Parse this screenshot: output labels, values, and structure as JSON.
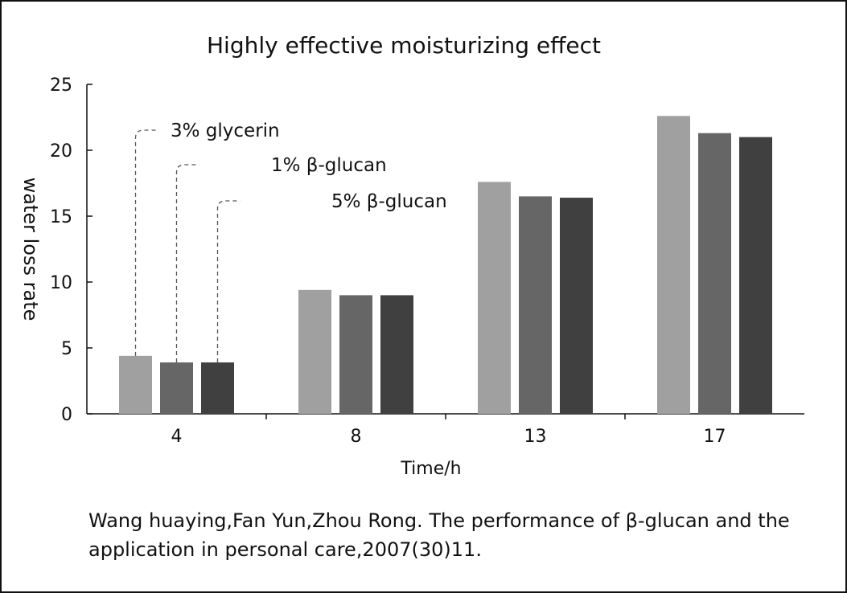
{
  "chart_data": {
    "type": "bar",
    "title": "Highly effective moisturizing effect",
    "xlabel": "Time/h",
    "ylabel": "water loss rate",
    "categories": [
      "4",
      "8",
      "13",
      "17"
    ],
    "series": [
      {
        "name": "3% glycerin",
        "values": [
          4.4,
          9.4,
          17.6,
          22.6
        ],
        "color": "#a0a0a0"
      },
      {
        "name": "1% β-glucan",
        "values": [
          3.9,
          9.0,
          16.5,
          21.3
        ],
        "color": "#666666"
      },
      {
        "name": "5% β-glucan",
        "values": [
          3.9,
          9.0,
          16.4,
          21.0
        ],
        "color": "#404040"
      }
    ],
    "ylim": [
      0,
      25
    ],
    "yticks": [
      0,
      5,
      10,
      15,
      20,
      25
    ],
    "grid": false,
    "legend": "callout labels pointing to first bar group"
  },
  "caption": {
    "line1": "Wang huaying,Fan Yun,Zhou Rong. The performance of β-glucan and the",
    "line2": "application in personal care,2007(30)11."
  }
}
